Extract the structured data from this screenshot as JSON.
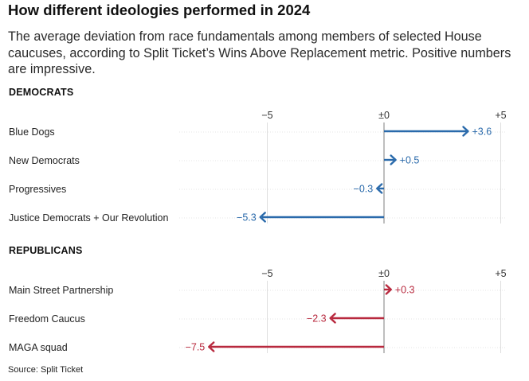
{
  "title": "How different ideologies performed in 2024",
  "subtitle": "The average deviation from race fundamentals among members of selected House caucuses, according to Split Ticket’s Wins Above Replacement metric. Positive numbers are impressive.",
  "source": "Source: Split Ticket",
  "colors": {
    "democrats": "#2a6aab",
    "republicans": "#b8293e",
    "grid": "#dedede",
    "zero_line": "#9a9a9a"
  },
  "chart_data": [
    {
      "type": "bar",
      "panel": "democrats",
      "title": "DEMOCRATS",
      "xlim": [
        -5.5,
        5
      ],
      "xticks": [
        {
          "value": -5,
          "label": "−5"
        },
        {
          "value": 0,
          "label": "±0"
        },
        {
          "value": 5,
          "label": "+5"
        }
      ],
      "series": [
        {
          "categories": [
            "Blue Dogs",
            "New Democrats",
            "Progressives",
            "Justice Democrats + Our Revolution"
          ],
          "values": [
            3.6,
            0.5,
            -0.3,
            -5.3
          ],
          "labels": [
            "+3.6",
            "+0.5",
            "−0.3",
            "−5.3"
          ]
        }
      ]
    },
    {
      "type": "bar",
      "panel": "republicans",
      "title": "REPUBLICANS",
      "xlim": [
        -8.5,
        5
      ],
      "xticks": [
        {
          "value": -5,
          "label": "−5"
        },
        {
          "value": 0,
          "label": "±0"
        },
        {
          "value": 5,
          "label": "+5"
        }
      ],
      "series": [
        {
          "categories": [
            "Main Street Partnership",
            "Freedom Caucus",
            "MAGA squad"
          ],
          "values": [
            0.3,
            -2.3,
            -7.5
          ],
          "labels": [
            "+0.3",
            "−2.3",
            "−7.5"
          ]
        }
      ]
    }
  ]
}
